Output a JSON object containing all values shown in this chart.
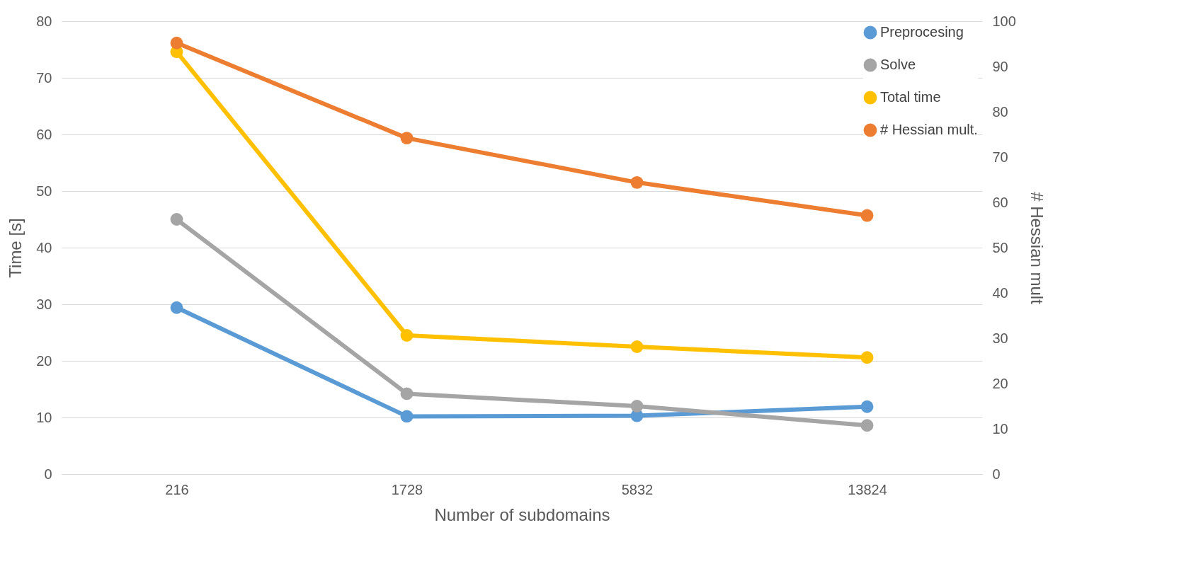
{
  "chart_data": {
    "type": "line",
    "xlabel": "Number of subdomains",
    "ylabel": "Time [s]",
    "y2label": "# Hessian mult",
    "categories": [
      "216",
      "1728",
      "5832",
      "13824"
    ],
    "series": [
      {
        "name": "Preprocesing",
        "color": "#5b9bd5",
        "values": [
          29.4,
          10.2,
          10.3,
          11.9
        ]
      },
      {
        "name": "Solve",
        "color": "#a5a5a5",
        "values": [
          45.0,
          14.2,
          12.0,
          8.6
        ]
      },
      {
        "name": "Total time",
        "color": "#ffc000",
        "values": [
          74.6,
          24.5,
          22.5,
          20.6
        ]
      },
      {
        "name": "# Hessian mult.",
        "color": "#ed7d31",
        "values": [
          95.2,
          74.2,
          64.4,
          57.1
        ],
        "axis": "y2"
      }
    ],
    "ylim": [
      0,
      80
    ],
    "yticks": [
      0,
      10,
      20,
      30,
      40,
      50,
      60,
      70,
      80
    ],
    "y2lim": [
      0,
      100
    ],
    "y2ticks": [
      0,
      10,
      20,
      30,
      40,
      50,
      60,
      70,
      80,
      90,
      100
    ],
    "grid": "y",
    "legend": "top right",
    "marker": "circle",
    "line_style": "solid"
  }
}
